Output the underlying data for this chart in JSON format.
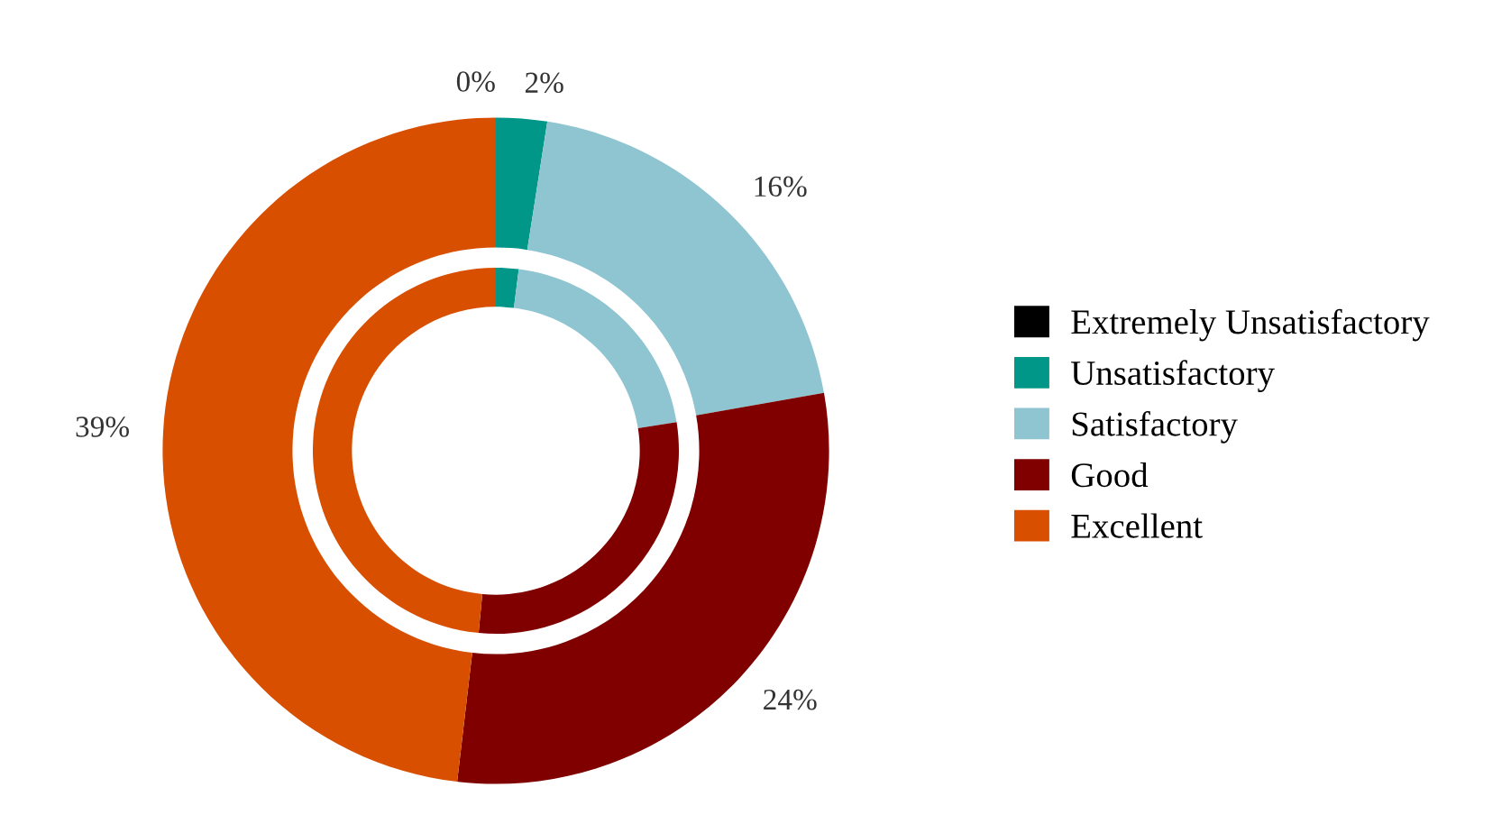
{
  "chart_data": {
    "type": "donut",
    "categories": [
      "Extremely Unsatisfactory",
      "Unsatisfactory",
      "Satisfactory",
      "Good",
      "Excellent"
    ],
    "colors": [
      "#000000",
      "#009688",
      "#8fc4d1",
      "#800000",
      "#d94f00"
    ],
    "legend": "right",
    "series": [
      {
        "values": [
          0,
          2,
          16,
          24,
          39
        ],
        "value_labels": [
          "0%",
          "2%",
          "16%",
          "24%",
          "39%"
        ]
      },
      {
        "values": [
          0,
          2,
          20.5,
          29,
          48.5
        ]
      }
    ]
  }
}
